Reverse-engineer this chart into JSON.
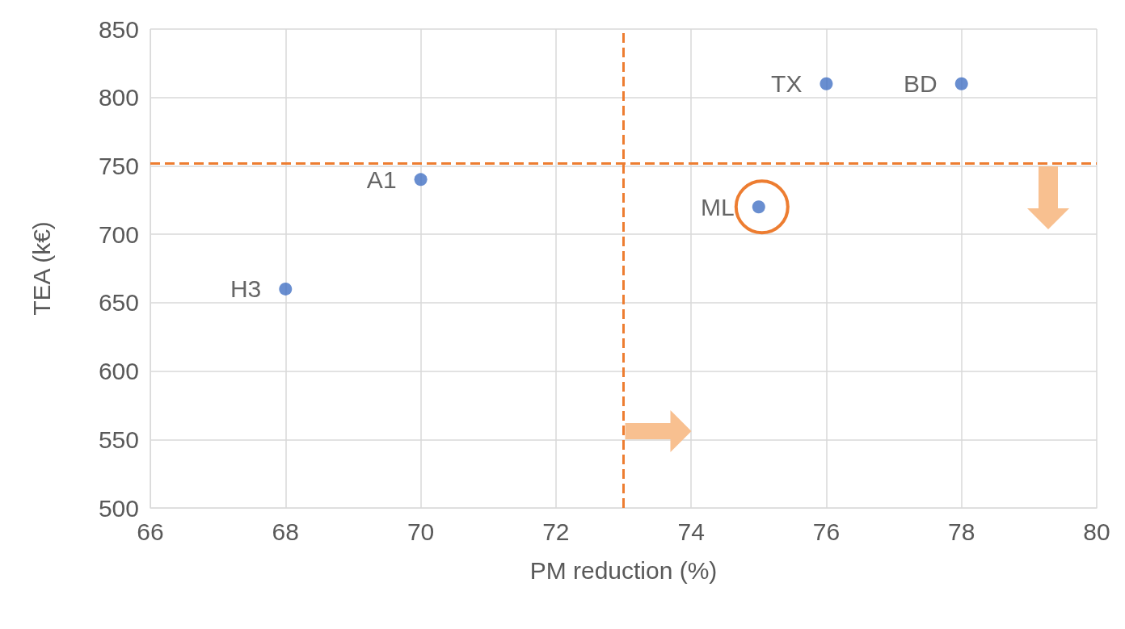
{
  "chart_data": {
    "type": "scatter",
    "xlabel": "PM reduction (%)",
    "ylabel": "TEA (k€)",
    "xlim": [
      66,
      80
    ],
    "xticks": [
      66,
      68,
      70,
      72,
      74,
      76,
      78,
      80
    ],
    "ylim": [
      500,
      850
    ],
    "yticks": [
      500,
      550,
      600,
      650,
      700,
      750,
      800,
      850
    ],
    "grid": true,
    "marker": "circle",
    "legend": false,
    "series": [
      {
        "name": "H3",
        "color": "#4472c4",
        "x": [
          68
        ],
        "values": [
          660
        ]
      },
      {
        "name": "A1",
        "color": "#4472c4",
        "x": [
          70
        ],
        "values": [
          740
        ]
      },
      {
        "name": "ML",
        "color": "#4472c4",
        "x": [
          75
        ],
        "values": [
          720
        ]
      },
      {
        "name": "TX",
        "color": "#4472c4",
        "x": [
          76
        ],
        "values": [
          810
        ]
      },
      {
        "name": "BD",
        "color": "#4472c4",
        "x": [
          78
        ],
        "values": [
          810
        ]
      }
    ],
    "ref_lines": [
      {
        "axis": "x",
        "value": 73,
        "color": "#ed7d31",
        "line_style": "dashed"
      },
      {
        "axis": "y",
        "value": 752,
        "color": "#ed7d31",
        "line_style": "dashed"
      }
    ]
  }
}
